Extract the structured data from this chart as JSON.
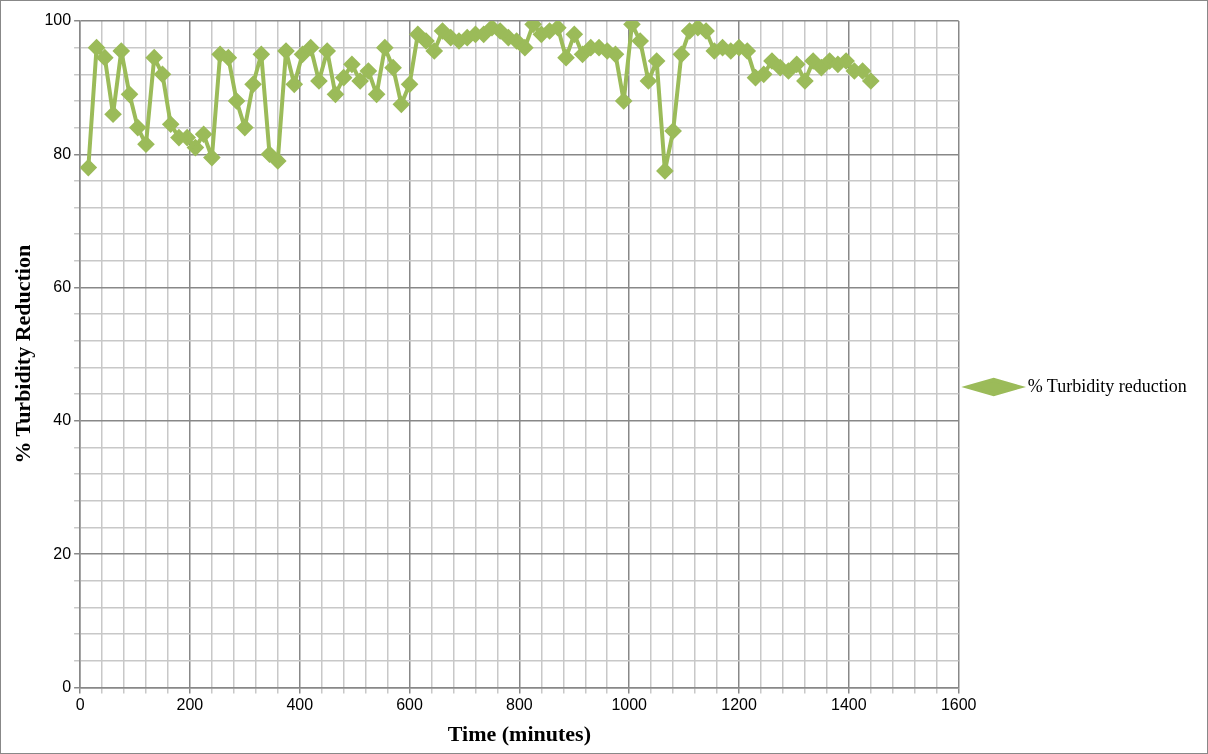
{
  "chart_data": {
    "type": "line",
    "xlabel": "Time (minutes)",
    "ylabel": "% Turbidity Reduction",
    "x": [
      15,
      30,
      45,
      60,
      75,
      90,
      105,
      120,
      135,
      150,
      165,
      180,
      195,
      210,
      225,
      240,
      255,
      270,
      285,
      300,
      315,
      330,
      345,
      360,
      375,
      390,
      405,
      420,
      435,
      450,
      465,
      480,
      495,
      510,
      525,
      540,
      555,
      570,
      585,
      600,
      615,
      630,
      645,
      660,
      675,
      690,
      705,
      720,
      735,
      750,
      765,
      780,
      795,
      810,
      825,
      840,
      855,
      870,
      885,
      900,
      915,
      930,
      945,
      960,
      975,
      990,
      1005,
      1020,
      1035,
      1050,
      1065,
      1080,
      1095,
      1110,
      1125,
      1140,
      1155,
      1170,
      1185,
      1200,
      1215,
      1230,
      1245,
      1260,
      1275,
      1290,
      1305,
      1320,
      1335,
      1350,
      1365,
      1380,
      1395,
      1410,
      1425,
      1440
    ],
    "series": [
      {
        "name": "% Turbidity reduction",
        "color": "#9bbb59",
        "values": [
          78,
          96,
          94.5,
          86,
          95.5,
          89,
          84,
          81.5,
          94.5,
          92,
          84.5,
          82.5,
          82.5,
          81,
          83,
          79.5,
          95,
          94.5,
          88,
          84,
          90.5,
          95,
          80,
          79,
          95.5,
          90.5,
          95,
          96,
          91,
          95.5,
          89,
          91.5,
          93.5,
          91,
          92.5,
          89,
          96,
          93,
          87.5,
          90.5,
          98,
          97,
          95.5,
          98.5,
          97.5,
          97,
          97.5,
          98,
          98,
          99,
          98.5,
          97.5,
          97,
          96,
          99.5,
          98,
          98.5,
          99,
          94.5,
          98,
          95,
          96,
          96,
          95.5,
          95,
          88,
          99.5,
          97,
          91,
          94,
          77.5,
          83.5,
          95,
          98.5,
          99,
          98.5,
          95.5,
          96,
          95.5,
          96,
          95.5,
          91.5,
          92,
          94,
          93,
          92.5,
          93.5,
          91,
          94,
          93,
          94,
          93.5,
          94,
          92.5,
          92.5,
          91
        ]
      }
    ],
    "xlim": [
      0,
      1600
    ],
    "xticks": [
      0,
      {
        "value": 40,
        "label": null
      },
      {
        "value": 80,
        "label": null
      },
      {
        "value": 120,
        "label": null
      },
      {
        "value": 160,
        "label": null
      },
      200,
      {
        "value": 240,
        "label": null
      },
      {
        "value": 280,
        "label": null
      },
      {
        "value": 320,
        "label": null
      },
      {
        "value": 360,
        "label": null
      },
      400,
      {
        "value": 440,
        "label": null
      },
      {
        "value": 480,
        "label": null
      },
      {
        "value": 520,
        "label": null
      },
      {
        "value": 560,
        "label": null
      },
      600,
      {
        "value": 640,
        "label": null
      },
      {
        "value": 680,
        "label": null
      },
      {
        "value": 720,
        "label": null
      },
      {
        "value": 760,
        "label": null
      },
      800,
      {
        "value": 840,
        "label": null
      },
      {
        "value": 880,
        "label": null
      },
      {
        "value": 920,
        "label": null
      },
      {
        "value": 960,
        "label": null
      },
      1000,
      {
        "value": 1040,
        "label": null
      },
      {
        "value": 1080,
        "label": null
      },
      {
        "value": 1120,
        "label": null
      },
      {
        "value": 1160,
        "label": null
      },
      1200,
      {
        "value": 1240,
        "label": null
      },
      {
        "value": 1280,
        "label": null
      },
      {
        "value": 1320,
        "label": null
      },
      {
        "value": 1360,
        "label": null
      },
      1400,
      {
        "value": 1440,
        "label": null
      },
      {
        "value": 1480,
        "label": null
      },
      {
        "value": 1520,
        "label": null
      },
      {
        "value": 1560,
        "label": null
      },
      1600
    ],
    "ylim": [
      0,
      100
    ],
    "yticks": [
      0,
      {
        "value": 4,
        "label": null
      },
      {
        "value": 8,
        "label": null
      },
      {
        "value": 12,
        "label": null
      },
      {
        "value": 16,
        "label": null
      },
      20,
      {
        "value": 24,
        "label": null
      },
      {
        "value": 28,
        "label": null
      },
      {
        "value": 32,
        "label": null
      },
      {
        "value": 36,
        "label": null
      },
      40,
      {
        "value": 44,
        "label": null
      },
      {
        "value": 48,
        "label": null
      },
      {
        "value": 52,
        "label": null
      },
      {
        "value": 56,
        "label": null
      },
      60,
      {
        "value": 64,
        "label": null
      },
      {
        "value": 68,
        "label": null
      },
      {
        "value": 72,
        "label": null
      },
      {
        "value": 76,
        "label": null
      },
      80,
      {
        "value": 84,
        "label": null
      },
      {
        "value": 88,
        "label": null
      },
      {
        "value": 92,
        "label": null
      },
      {
        "value": 96,
        "label": null
      },
      100
    ],
    "grid": true,
    "legend": "right",
    "marker": "diamond",
    "line_style": "solid"
  }
}
